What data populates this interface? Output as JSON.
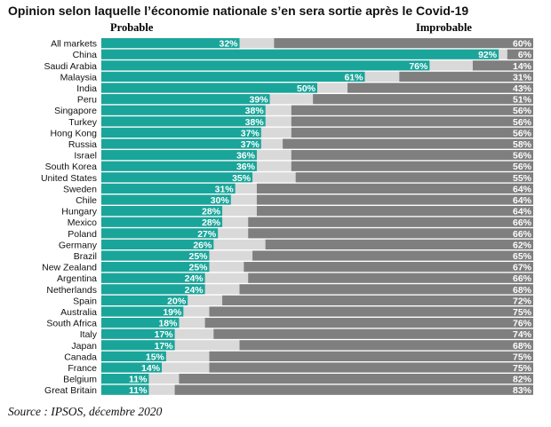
{
  "chart_data": {
    "type": "bar",
    "orientation": "horizontal",
    "stacked": true,
    "title": "Opinion selon laquelle l’économie nationale s’en sera sortie après le Covid-19",
    "categories": [
      "All markets",
      "China",
      "Saudi Arabia",
      "Malaysia",
      "India",
      "Peru",
      "Singapore",
      "Turkey",
      "Hong Kong",
      "Russia",
      "Israel",
      "South Korea",
      "United States",
      "Sweden",
      "Chile",
      "Hungary",
      "Mexico",
      "Poland",
      "Germany",
      "Brazil",
      "New Zealand",
      "Argentina",
      "Netherlands",
      "Spain",
      "Australia",
      "South Africa",
      "Italy",
      "Japan",
      "Canada",
      "France",
      "Belgium",
      "Great Britain"
    ],
    "series": [
      {
        "name": "Probable",
        "values": [
          32,
          92,
          76,
          61,
          50,
          39,
          38,
          38,
          37,
          37,
          36,
          36,
          35,
          31,
          30,
          28,
          28,
          27,
          26,
          25,
          25,
          24,
          24,
          20,
          19,
          18,
          17,
          17,
          15,
          14,
          11,
          11
        ]
      },
      {
        "name": "Improbable",
        "values": [
          60,
          6,
          14,
          31,
          43,
          51,
          56,
          56,
          56,
          58,
          56,
          56,
          55,
          64,
          64,
          64,
          66,
          66,
          62,
          65,
          67,
          66,
          68,
          72,
          75,
          76,
          74,
          68,
          75,
          75,
          82,
          83
        ]
      }
    ],
    "value_suffix": "%",
    "xlim": [
      0,
      100
    ],
    "legend": "top",
    "grid": false,
    "colors": {
      "probable": "#1aa59a",
      "unsure": "#d9d9d9",
      "improbable": "#7f7f7f"
    }
  },
  "header": {
    "probable_label": "Probable",
    "improbable_label": "Improbable"
  },
  "footer": {
    "source": "Source : IPSOS, décembre 2020"
  }
}
